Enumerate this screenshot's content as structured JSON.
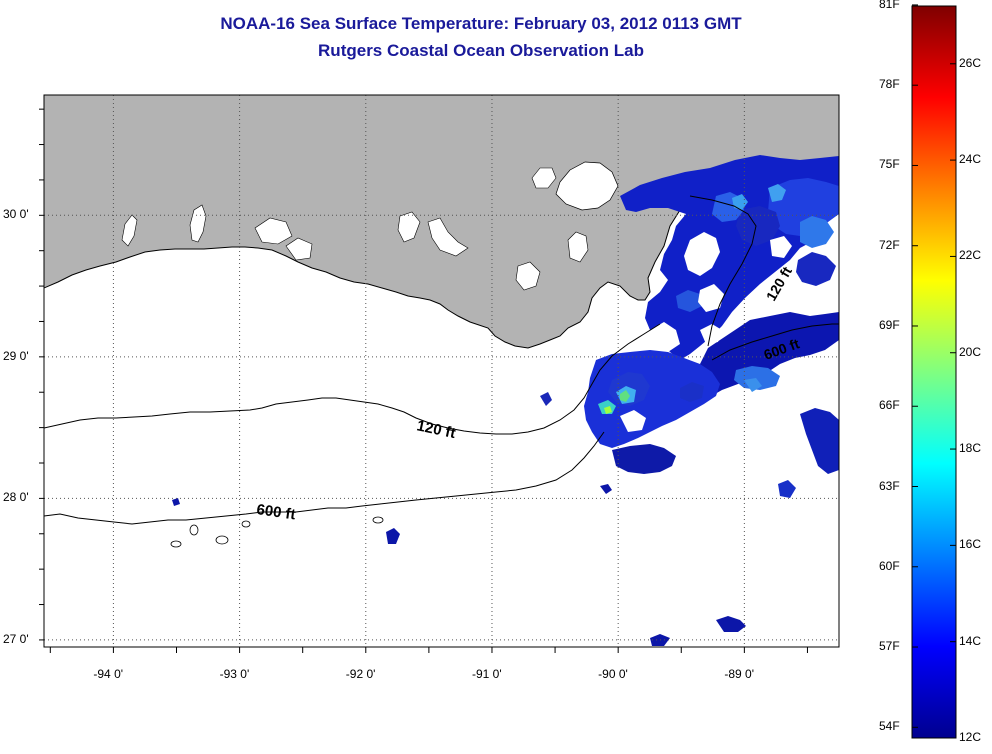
{
  "title": "NOAA-16 Sea Surface Temperature:  February 03, 2012 0113 GMT",
  "subtitle": "Rutgers Coastal Ocean Observation Lab",
  "map": {
    "lon_range": [
      -94.55,
      -88.25
    ],
    "lat_range": [
      26.95,
      30.85
    ],
    "lon_ticks": [
      {
        "value": -94,
        "label": "-94 0'"
      },
      {
        "value": -93,
        "label": "-93 0'"
      },
      {
        "value": -92,
        "label": "-92 0'"
      },
      {
        "value": -91,
        "label": "-91 0'"
      },
      {
        "value": -90,
        "label": "-90 0'"
      },
      {
        "value": -89,
        "label": "-89 0'"
      }
    ],
    "lat_ticks": [
      {
        "value": 30,
        "label": "30 0'"
      },
      {
        "value": 29,
        "label": "29 0'"
      },
      {
        "value": 28,
        "label": "28 0'"
      },
      {
        "value": 27,
        "label": "27 0'"
      }
    ],
    "land_color": "#b3b3b3",
    "grid": "dotted",
    "isobaths": [
      {
        "label": "120 ft"
      },
      {
        "label": "600 ft"
      }
    ]
  },
  "colorbar": {
    "orientation": "vertical",
    "placement": "right",
    "min_c": 12,
    "max_c": 27.2,
    "f_labels": [
      "81F",
      "78F",
      "75F",
      "72F",
      "69F",
      "66F",
      "63F",
      "60F",
      "57F",
      "54F"
    ],
    "c_labels": [
      "26C",
      "24C",
      "22C",
      "20C",
      "18C",
      "16C",
      "14C",
      "12C"
    ],
    "colors": [
      "#7f0000",
      "#ff0000",
      "#ff8000",
      "#ffff00",
      "#80ff80",
      "#00ffff",
      "#0080ff",
      "#0000ff",
      "#00008f"
    ]
  }
}
